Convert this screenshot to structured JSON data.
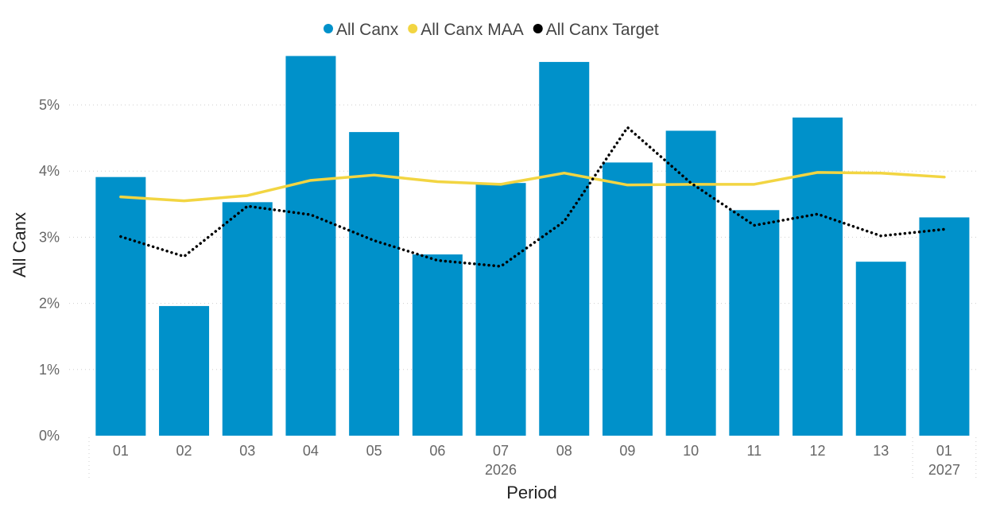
{
  "chart_data": {
    "type": "bar",
    "categories": [
      "01",
      "02",
      "03",
      "04",
      "05",
      "06",
      "07",
      "08",
      "09",
      "10",
      "11",
      "12",
      "13",
      "01"
    ],
    "year_groups": [
      {
        "label": "2026",
        "start": 0,
        "end": 12
      },
      {
        "label": "2027",
        "start": 13,
        "end": 13
      }
    ],
    "series": [
      {
        "name": "All Canx",
        "kind": "bar",
        "color": "#0091CA",
        "values": [
          3.91,
          1.96,
          3.53,
          5.74,
          4.59,
          2.74,
          3.82,
          5.65,
          4.13,
          4.61,
          3.41,
          4.81,
          2.63,
          3.3
        ]
      },
      {
        "name": "All Canx MAA",
        "kind": "line",
        "style": "solid",
        "color": "#F2D542",
        "values": [
          3.61,
          3.55,
          3.63,
          3.86,
          3.94,
          3.84,
          3.8,
          3.97,
          3.79,
          3.8,
          3.8,
          3.98,
          3.97,
          3.91
        ]
      },
      {
        "name": "All Canx Target",
        "kind": "line",
        "style": "dotted",
        "color": "#000000",
        "values": [
          3.01,
          2.71,
          3.47,
          3.34,
          2.95,
          2.65,
          2.56,
          3.24,
          4.66,
          3.82,
          3.18,
          3.35,
          3.02,
          3.12
        ]
      }
    ],
    "xlabel": "Period",
    "ylabel": "All Canx",
    "yticks": [
      "0%",
      "1%",
      "2%",
      "3%",
      "4%",
      "5%"
    ],
    "ylim": [
      0,
      5.75
    ],
    "grid": true,
    "legend_position": "top-center"
  }
}
